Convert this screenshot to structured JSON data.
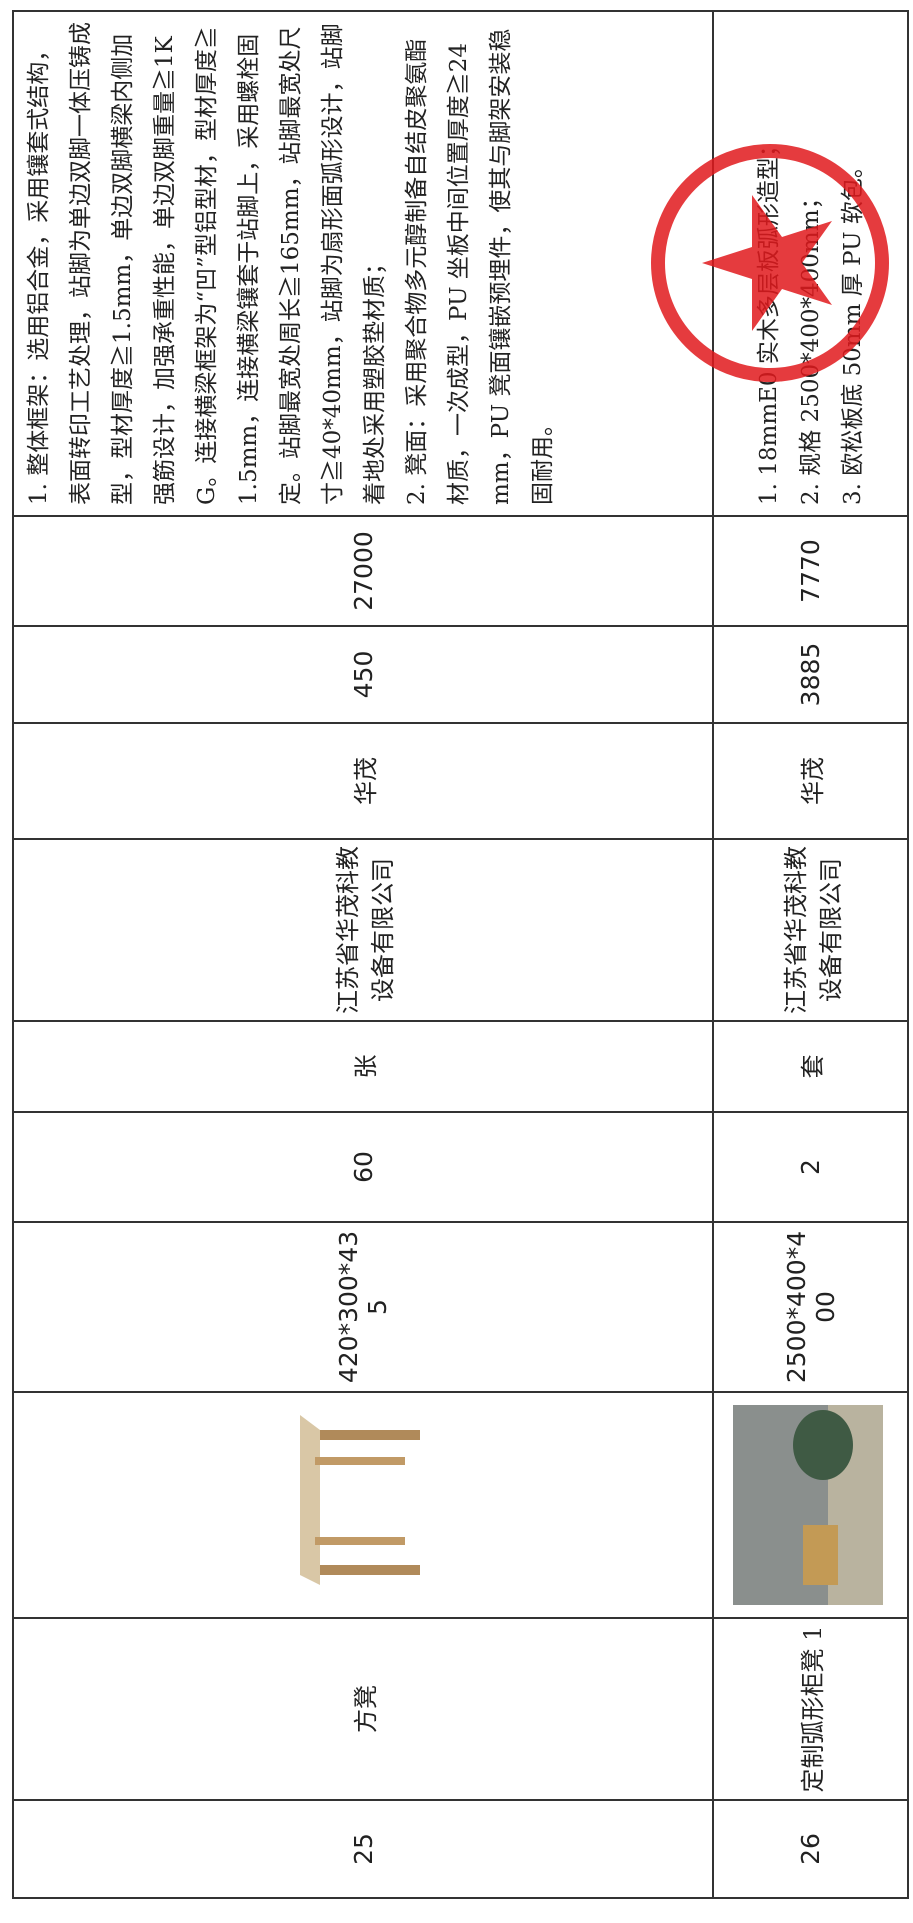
{
  "table": {
    "rows": [
      [
        "25",
        "方凳",
        "420*300*435",
        "60",
        "张",
        "江苏省华茂科教设备有限公司",
        "华茂",
        "450",
        "27000",
        [
          "1. 整体框架：选用铝合金，采用镶套式结构，表面转印工艺处理，站脚为单边双脚一体压铸成型，型材厚度≧1.5mm，单边双脚横梁内侧加强筋设计，加强承重性能，单边双脚重量≧1KG。连接横梁框架为“凹”型铝型材，型材厚度≧1.5mm，连接横梁镶套于站脚上，采用螺栓固定。站脚最宽处周长≧165mm，站脚最宽处尺寸≧40*40mm，站脚为扇形面弧形设计，站脚着地处采用塑胶垫材质；",
          "2. 凳面：采用聚合物多元醇制备自结皮聚氨酯材质，一次成型，PU 坐板中间位置厚度≧24mm，PU 凳面镶嵌预埋件，使其与脚架安装稳固耐用。"
        ]
      ],
      [
        "26",
        "定制弧形柜凳 1",
        "2500*400*400",
        "2",
        "套",
        "江苏省华茂科教设备有限公司",
        "华茂",
        "3885",
        "7770",
        [
          "1. 18mmE0 实木多层板弧形造型；",
          "2. 规格 2500*400*400mm；",
          "3. 欧松板底 50mm 厚 PU 软包。"
        ]
      ]
    ]
  }
}
